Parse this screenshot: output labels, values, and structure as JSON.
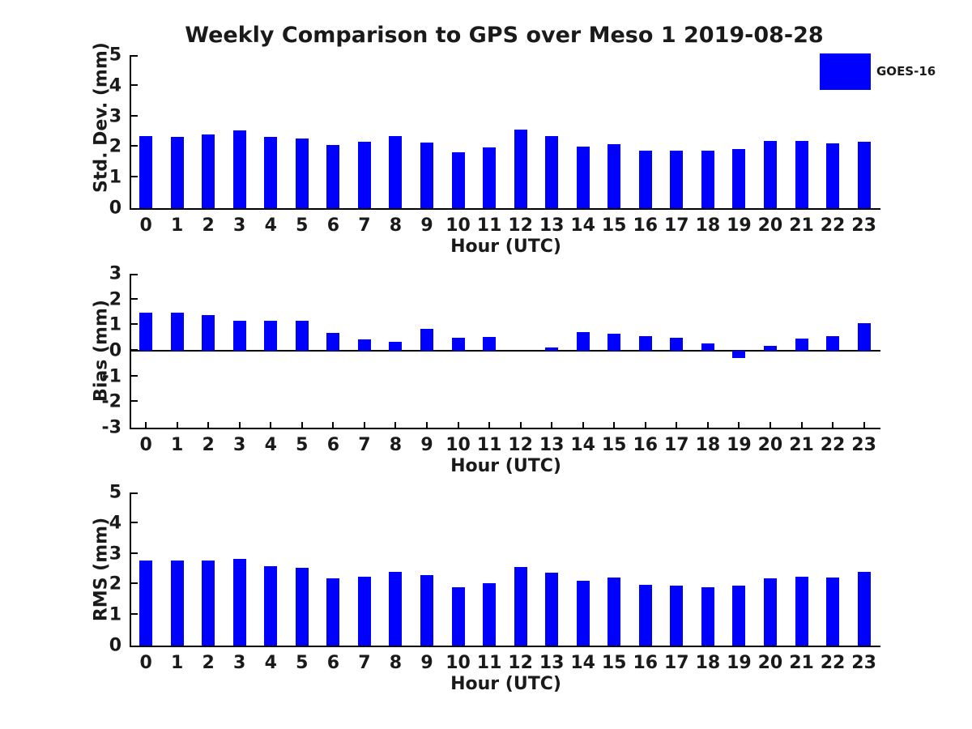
{
  "title": "Weekly Comparison to GPS over Meso 1 2019-08-28",
  "legend": {
    "label": "GOES-16",
    "swatch_color": "#0000ff",
    "position": "top-right-outside"
  },
  "colors": {
    "bar": "#0000ff",
    "axis": "#000000",
    "text": "#1a1a1a",
    "background": "#ffffff"
  },
  "chart_data": [
    {
      "type": "bar",
      "title": "",
      "ylabel": "Std. Dev. (mm)",
      "xlabel": "Hour (UTC)",
      "ylim": [
        0,
        5
      ],
      "yticks": [
        "0",
        "1",
        "2",
        "3",
        "4",
        "5"
      ],
      "grid": false,
      "x_tick_marks": false,
      "legend_position": "none",
      "categories": [
        "0",
        "1",
        "2",
        "3",
        "4",
        "5",
        "6",
        "7",
        "8",
        "9",
        "10",
        "11",
        "12",
        "13",
        "14",
        "15",
        "16",
        "17",
        "18",
        "19",
        "20",
        "21",
        "22",
        "23"
      ],
      "series": [
        {
          "name": "GOES-16",
          "values": [
            2.35,
            2.33,
            2.4,
            2.55,
            2.33,
            2.27,
            2.06,
            2.17,
            2.35,
            2.14,
            1.83,
            1.98,
            2.56,
            2.35,
            2.01,
            2.09,
            1.87,
            1.87,
            1.87,
            1.93,
            2.19,
            2.2,
            2.13,
            2.16
          ]
        }
      ]
    },
    {
      "type": "bar",
      "title": "",
      "ylabel": "Bias (mm)",
      "xlabel": "Hour (UTC)",
      "ylim": [
        -3,
        3
      ],
      "yticks": [
        "-3",
        "-2",
        "-1",
        "0",
        "1",
        "2",
        "3"
      ],
      "grid": false,
      "x_tick_marks": true,
      "legend_position": "none",
      "categories": [
        "0",
        "1",
        "2",
        "3",
        "4",
        "5",
        "6",
        "7",
        "8",
        "9",
        "10",
        "11",
        "12",
        "13",
        "14",
        "15",
        "16",
        "17",
        "18",
        "19",
        "20",
        "21",
        "22",
        "23"
      ],
      "series": [
        {
          "name": "GOES-16",
          "values": [
            1.5,
            1.5,
            1.38,
            1.16,
            1.16,
            1.16,
            0.7,
            0.45,
            0.35,
            0.86,
            0.52,
            0.55,
            0.0,
            0.14,
            0.73,
            0.67,
            0.58,
            0.51,
            0.29,
            -0.27,
            0.18,
            0.48,
            0.56,
            1.07
          ]
        }
      ]
    },
    {
      "type": "bar",
      "title": "",
      "ylabel": "RMS (mm)",
      "xlabel": "Hour (UTC)",
      "ylim": [
        0,
        5
      ],
      "yticks": [
        "0",
        "1",
        "2",
        "3",
        "4",
        "5"
      ],
      "grid": false,
      "x_tick_marks": false,
      "legend_position": "none",
      "categories": [
        "0",
        "1",
        "2",
        "3",
        "4",
        "5",
        "6",
        "7",
        "8",
        "9",
        "10",
        "11",
        "12",
        "13",
        "14",
        "15",
        "16",
        "17",
        "18",
        "19",
        "20",
        "21",
        "22",
        "23"
      ],
      "series": [
        {
          "name": "GOES-16",
          "values": [
            2.78,
            2.78,
            2.78,
            2.82,
            2.6,
            2.55,
            2.19,
            2.24,
            2.4,
            2.29,
            1.9,
            2.05,
            2.56,
            2.37,
            2.12,
            2.22,
            1.99,
            1.96,
            1.91,
            1.96,
            2.2,
            2.25,
            2.22,
            2.41
          ]
        }
      ]
    }
  ]
}
